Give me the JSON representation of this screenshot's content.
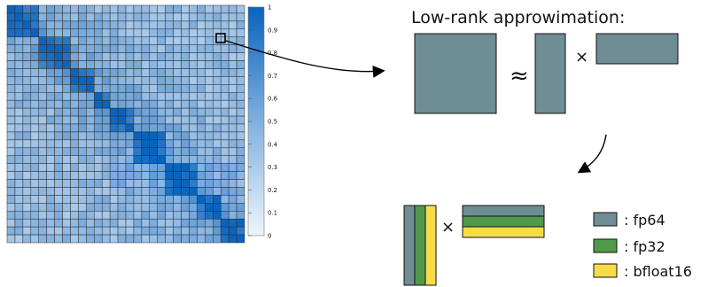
{
  "title": "Low-rank approwimation:",
  "colorbar": {
    "ticks": [
      "0",
      "0.1",
      "0.2",
      "0.3",
      "0.4",
      "0.5",
      "0.6",
      "0.7",
      "0.8",
      "0.9",
      "1"
    ]
  },
  "symbols": {
    "approx": "≈",
    "times": "×"
  },
  "legend": [
    {
      "label": ": fp64",
      "color": "#6e8d94"
    },
    {
      "label": ": fp32",
      "color": "#4f9a4a"
    },
    {
      "label": ": bfloat16",
      "color": "#f7dc4a"
    }
  ],
  "colors": {
    "fp64": "#6e8d94",
    "fp32": "#4f9a4a",
    "bfloat16": "#f7dc4a",
    "heatmap_low": "#e6f0fa",
    "heatmap_high": "#0a63bd"
  }
}
